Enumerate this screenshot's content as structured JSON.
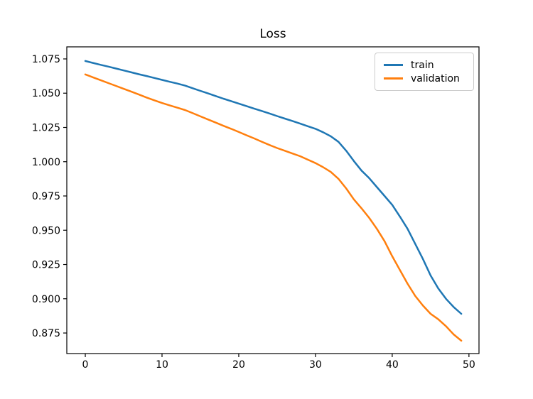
{
  "figure": {
    "background": "#ffffff"
  },
  "chart_data": {
    "type": "line",
    "title": "Loss",
    "xlabel": "",
    "ylabel": "",
    "grid": false,
    "legend_position": "upper right",
    "axis_color": "#000000",
    "text_color": "#000000",
    "xlim": [
      -2.41,
      51.31
    ],
    "ylim": [
      0.86,
      1.0838
    ],
    "xticks": [
      0,
      10,
      20,
      30,
      40,
      50
    ],
    "xtick_labels": [
      "0",
      "10",
      "20",
      "30",
      "40",
      "50"
    ],
    "yticks": [
      0.875,
      0.9,
      0.925,
      0.95,
      0.975,
      1.0,
      1.025,
      1.05,
      1.075
    ],
    "ytick_labels": [
      "0.875",
      "0.900",
      "0.925",
      "0.950",
      "0.975",
      "1.000",
      "1.025",
      "1.050",
      "1.075"
    ],
    "x": [
      0,
      1,
      2,
      3,
      4,
      5,
      6,
      7,
      8,
      9,
      10,
      11,
      12,
      13,
      14,
      15,
      16,
      17,
      18,
      19,
      20,
      21,
      22,
      23,
      24,
      25,
      26,
      27,
      28,
      29,
      30,
      31,
      32,
      33,
      34,
      35,
      36,
      37,
      38,
      39,
      40,
      41,
      42,
      43,
      44,
      45,
      46,
      47,
      48,
      49
    ],
    "series": [
      {
        "name": "train",
        "color": "#1f77b4",
        "values": [
          1.0735,
          1.0721,
          1.0707,
          1.0694,
          1.068,
          1.0666,
          1.0652,
          1.0638,
          1.0625,
          1.0611,
          1.0597,
          1.0583,
          1.057,
          1.0555,
          1.0536,
          1.0517,
          1.0498,
          1.0479,
          1.046,
          1.0442,
          1.0424,
          1.0406,
          1.0388,
          1.037,
          1.0352,
          1.0333,
          1.0315,
          1.0297,
          1.0278,
          1.0259,
          1.024,
          1.0215,
          1.0185,
          1.0145,
          1.008,
          1.0005,
          0.9935,
          0.988,
          0.9815,
          0.975,
          0.9685,
          0.96,
          0.951,
          0.94,
          0.929,
          0.917,
          0.9075,
          0.9,
          0.894,
          0.889
        ]
      },
      {
        "name": "validation",
        "color": "#ff7f0e",
        "values": [
          1.0637,
          1.0616,
          1.0595,
          1.0574,
          1.0553,
          1.0532,
          1.0511,
          1.049,
          1.0468,
          1.0448,
          1.0428,
          1.0411,
          1.0394,
          1.0377,
          1.0354,
          1.0331,
          1.0308,
          1.0285,
          1.0262,
          1.024,
          1.0217,
          1.0193,
          1.017,
          1.0146,
          1.0122,
          1.01,
          1.008,
          1.006,
          1.004,
          1.0015,
          0.999,
          0.996,
          0.9925,
          0.9875,
          0.9805,
          0.9725,
          0.966,
          0.959,
          0.951,
          0.942,
          0.931,
          0.921,
          0.911,
          0.902,
          0.895,
          0.889,
          0.885,
          0.88,
          0.874,
          0.8694
        ]
      }
    ]
  }
}
